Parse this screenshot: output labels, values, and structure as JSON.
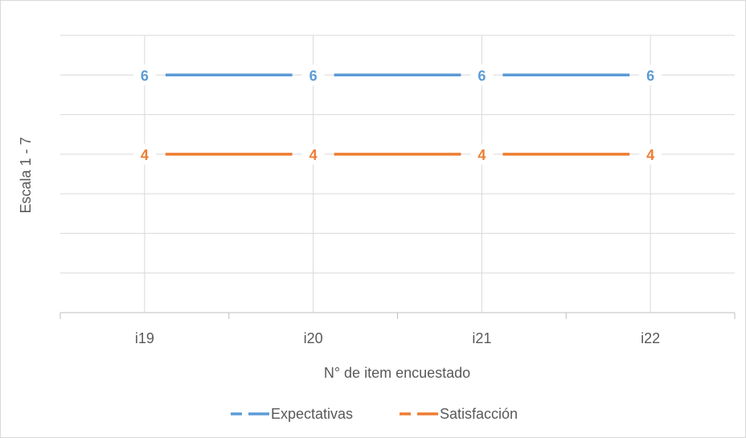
{
  "chart_data": {
    "type": "line",
    "categories": [
      "i19",
      "i20",
      "i21",
      "i22"
    ],
    "series": [
      {
        "name": "Expectativas",
        "values": [
          6,
          6,
          6,
          6
        ],
        "color": "#5b9bd5"
      },
      {
        "name": "Satisfacción",
        "values": [
          4,
          4,
          4,
          4
        ],
        "color": "#ed7d31"
      }
    ],
    "title": "",
    "xlabel": "N° de item encuestado",
    "ylabel": "Escala 1 - 7",
    "ylim": [
      0,
      7
    ],
    "grid": true,
    "legend": "bottom",
    "data_labels": true
  }
}
